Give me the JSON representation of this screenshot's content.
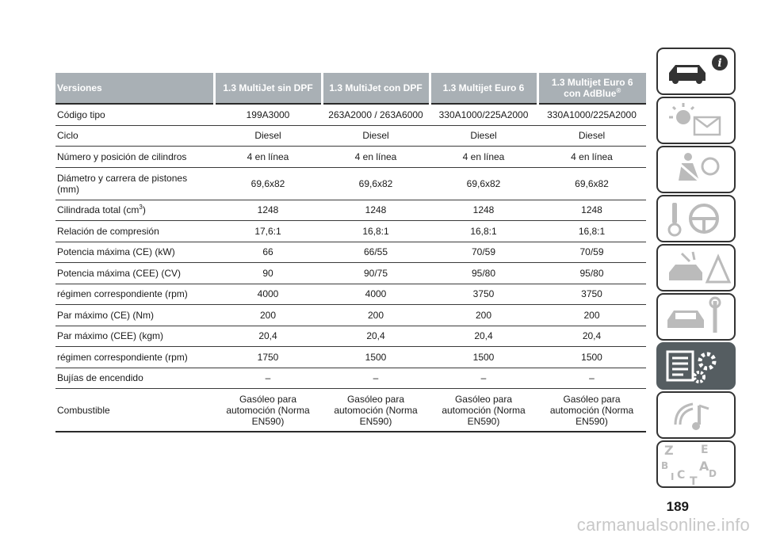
{
  "table": {
    "headers": [
      "Versiones",
      "1.3 MultiJet sin DPF",
      "1.3 MultiJet con DPF",
      "1.3 Multijet Euro 6",
      "1.3 Multijet Euro 6"
    ],
    "header_last_line2": "con AdBlue",
    "header_last_sup": "®",
    "rows": [
      {
        "label": "Código tipo",
        "values": [
          "199A3000",
          "263A2000 / 263A6000",
          "330A1000/225A2000",
          "330A1000/225A2000"
        ]
      },
      {
        "label": "Ciclo",
        "values": [
          "Diesel",
          "Diesel",
          "Diesel",
          "Diesel"
        ]
      },
      {
        "label": "Número y posición de cilindros",
        "values": [
          "4 en línea",
          "4 en línea",
          "4 en línea",
          "4 en línea"
        ]
      },
      {
        "label": "Diámetro y carrera de pistones (mm)",
        "values": [
          "69,6x82",
          "69,6x82",
          "69,6x82",
          "69,6x82"
        ]
      },
      {
        "label": "Cilindrada total (cm",
        "label_sup": "3",
        "label_end": ")",
        "values": [
          "1248",
          "1248",
          "1248",
          "1248"
        ]
      },
      {
        "label": "Relación de compresión",
        "values": [
          "17,6:1",
          "16,8:1",
          "16,8:1",
          "16,8:1"
        ]
      },
      {
        "label": "Potencia máxima (CE) (kW)",
        "values": [
          "66",
          "66/55",
          "70/59",
          "70/59"
        ]
      },
      {
        "label": "Potencia máxima (CEE) (CV)",
        "values": [
          "90",
          "90/75",
          "95/80",
          "95/80"
        ]
      },
      {
        "label": "régimen correspondiente (rpm)",
        "values": [
          "4000",
          "4000",
          "3750",
          "3750"
        ]
      },
      {
        "label": "Par máximo (CE) (Nm)",
        "values": [
          "200",
          "200",
          "200",
          "200"
        ]
      },
      {
        "label": "Par máximo (CEE) (kgm)",
        "values": [
          "20,4",
          "20,4",
          "20,4",
          "20,4"
        ]
      },
      {
        "label": "régimen correspondiente (rpm)",
        "values": [
          "1750",
          "1500",
          "1500",
          "1500"
        ]
      },
      {
        "label": "Bujías de encendido",
        "values": [
          "–",
          "–",
          "–",
          "–"
        ]
      },
      {
        "label": "Combustible",
        "values": [
          "Gasóleo para automoción (Norma EN590)",
          "Gasóleo para automoción (Norma EN590)",
          "Gasóleo para automoción (Norma EN590)",
          "Gasóleo para automoción (Norma EN590)"
        ]
      }
    ]
  },
  "page_number": "189",
  "watermark": "carmanualsonline.info",
  "nav_tabs": [
    {
      "icon": "car-info-icon",
      "active": false
    },
    {
      "icon": "warning-lights-message-icon",
      "active": false
    },
    {
      "icon": "airbag-safety-icon",
      "active": false
    },
    {
      "icon": "key-steering-wheel-icon",
      "active": false
    },
    {
      "icon": "emergency-warning-icon",
      "active": false
    },
    {
      "icon": "car-maintenance-icon",
      "active": false
    },
    {
      "icon": "technical-data-icon",
      "active": true
    },
    {
      "icon": "multimedia-icon",
      "active": false
    },
    {
      "icon": "alphabetical-index-icon",
      "active": false
    }
  ],
  "colors": {
    "header_bg": "#a9b0b5",
    "active_tab": "#555d61"
  }
}
